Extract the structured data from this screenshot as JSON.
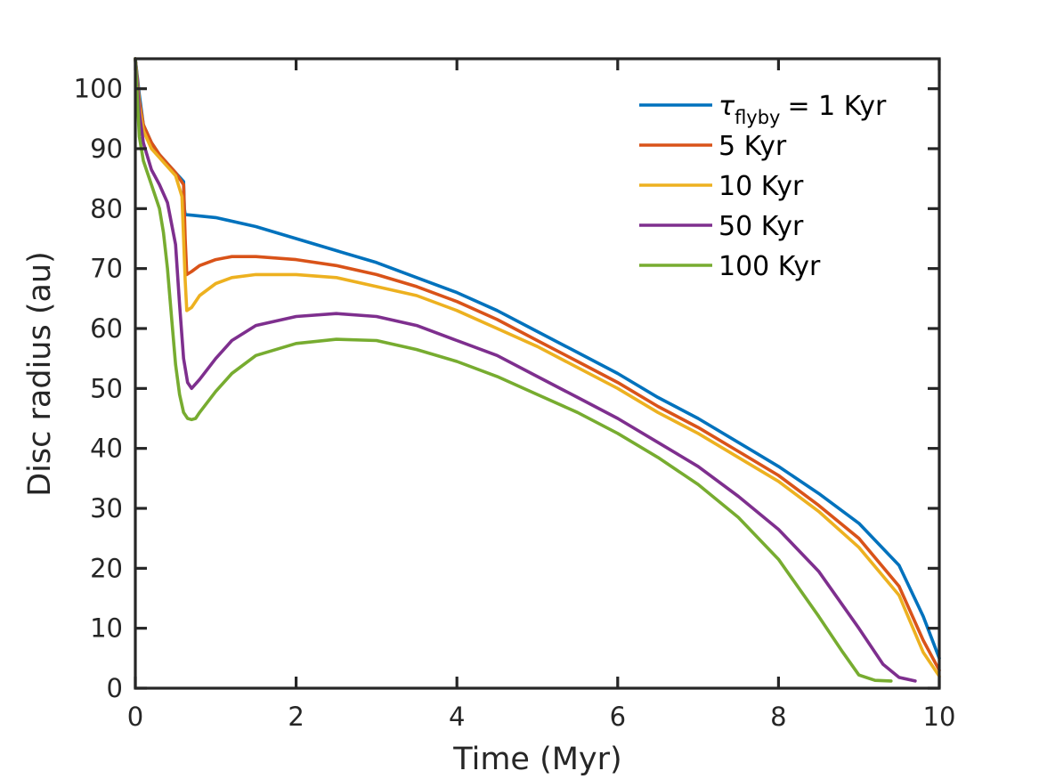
{
  "chart_data": {
    "type": "line",
    "title": "",
    "xlabel": "Time (Myr)",
    "ylabel": "Disc radius (au)",
    "xlim": [
      0,
      10
    ],
    "ylim": [
      0,
      105
    ],
    "xticks": [
      0,
      2,
      4,
      6,
      8,
      10
    ],
    "xtick_labels": [
      "0",
      "2",
      "4",
      "6",
      "8",
      "10"
    ],
    "yticks": [
      0,
      10,
      20,
      30,
      40,
      50,
      60,
      70,
      80,
      90,
      100
    ],
    "ytick_labels": [
      "0",
      "10",
      "20",
      "30",
      "40",
      "50",
      "60",
      "70",
      "80",
      "90",
      "100"
    ],
    "grid": false,
    "legend_position": "top-right",
    "legend_symbol": "τ",
    "legend_subscript": "flyby",
    "series": [
      {
        "name": "= 1 Kyr",
        "color": "#0072BD",
        "x": [
          0,
          0.05,
          0.1,
          0.2,
          0.3,
          0.4,
          0.5,
          0.6,
          0.61,
          0.62,
          0.7,
          1.0,
          1.5,
          2.0,
          2.5,
          3.0,
          3.5,
          4.0,
          4.5,
          5.0,
          5.5,
          6.0,
          6.5,
          7.0,
          7.5,
          8.0,
          8.5,
          9.0,
          9.5,
          9.8,
          10.0
        ],
        "y": [
          105,
          99,
          94,
          91,
          89,
          87.5,
          86,
          84.5,
          80,
          79,
          78.9,
          78.5,
          77,
          75,
          73,
          71,
          68.5,
          66,
          63,
          59.5,
          56,
          52.5,
          48.5,
          45,
          41,
          37,
          32.5,
          27.5,
          20.5,
          12,
          5
        ]
      },
      {
        "name": "5 Kyr",
        "color": "#D95319",
        "x": [
          0,
          0.05,
          0.1,
          0.2,
          0.3,
          0.4,
          0.5,
          0.6,
          0.62,
          0.64,
          0.7,
          0.8,
          1.0,
          1.2,
          1.5,
          2.0,
          2.5,
          3.0,
          3.5,
          4.0,
          4.5,
          5.0,
          5.5,
          6.0,
          6.5,
          7.0,
          7.5,
          8.0,
          8.5,
          9.0,
          9.5,
          9.8,
          10.0
        ],
        "y": [
          105,
          98,
          94,
          91,
          89,
          87.5,
          86,
          84,
          75,
          69,
          69.5,
          70.5,
          71.5,
          72,
          72,
          71.5,
          70.5,
          69,
          67,
          64.5,
          61.5,
          58,
          54.5,
          51,
          47,
          43.5,
          39.5,
          35.5,
          30.5,
          25,
          17,
          8,
          3
        ]
      },
      {
        "name": "10 Kyr",
        "color": "#EDB120",
        "x": [
          0,
          0.05,
          0.1,
          0.2,
          0.3,
          0.4,
          0.5,
          0.58,
          0.62,
          0.64,
          0.7,
          0.8,
          1.0,
          1.2,
          1.5,
          2.0,
          2.5,
          3.0,
          3.5,
          4.0,
          4.5,
          5.0,
          5.5,
          6.0,
          6.5,
          7.0,
          7.5,
          8.0,
          8.5,
          9.0,
          9.5,
          9.8,
          10.0
        ],
        "y": [
          105,
          97,
          93,
          90,
          88.5,
          87,
          85.5,
          82,
          68,
          63,
          63.5,
          65.5,
          67.5,
          68.5,
          69,
          69,
          68.5,
          67,
          65.5,
          63,
          60,
          57,
          53.5,
          50,
          46,
          42.5,
          38.5,
          34.5,
          29.5,
          23.5,
          15.5,
          6,
          2
        ]
      },
      {
        "name": "50 Kyr",
        "color": "#7E2F8E",
        "x": [
          0,
          0.05,
          0.1,
          0.2,
          0.3,
          0.4,
          0.5,
          0.55,
          0.6,
          0.65,
          0.7,
          0.8,
          1.0,
          1.2,
          1.5,
          2.0,
          2.5,
          3.0,
          3.5,
          4.0,
          4.5,
          5.0,
          5.5,
          6.0,
          6.5,
          7.0,
          7.5,
          8.0,
          8.5,
          9.0,
          9.3,
          9.5,
          9.7
        ],
        "y": [
          105,
          96,
          91,
          86.5,
          84,
          81,
          74,
          64,
          55,
          51,
          50,
          51.5,
          55,
          58,
          60.5,
          62,
          62.5,
          62,
          60.5,
          58,
          55.5,
          52,
          48.5,
          45,
          41,
          37,
          32,
          26.5,
          19.5,
          10,
          4,
          1.8,
          1.2
        ]
      },
      {
        "name": "100 Kyr",
        "color": "#77AC30",
        "x": [
          0,
          0.05,
          0.1,
          0.2,
          0.3,
          0.35,
          0.4,
          0.45,
          0.5,
          0.55,
          0.6,
          0.65,
          0.7,
          0.75,
          0.8,
          1.0,
          1.2,
          1.5,
          2.0,
          2.5,
          3.0,
          3.5,
          4.0,
          4.5,
          5.0,
          5.5,
          6.0,
          6.5,
          7.0,
          7.5,
          8.0,
          8.5,
          8.8,
          9.0,
          9.2,
          9.4
        ],
        "y": [
          105,
          92,
          88,
          84,
          80,
          76,
          70,
          62,
          54,
          49,
          46,
          45,
          44.8,
          45,
          46,
          49.5,
          52.5,
          55.5,
          57.5,
          58.2,
          58,
          56.5,
          54.5,
          52,
          49,
          46,
          42.5,
          38.5,
          34,
          28.5,
          21.5,
          12,
          6,
          2.2,
          1.3,
          1.2
        ]
      }
    ]
  }
}
